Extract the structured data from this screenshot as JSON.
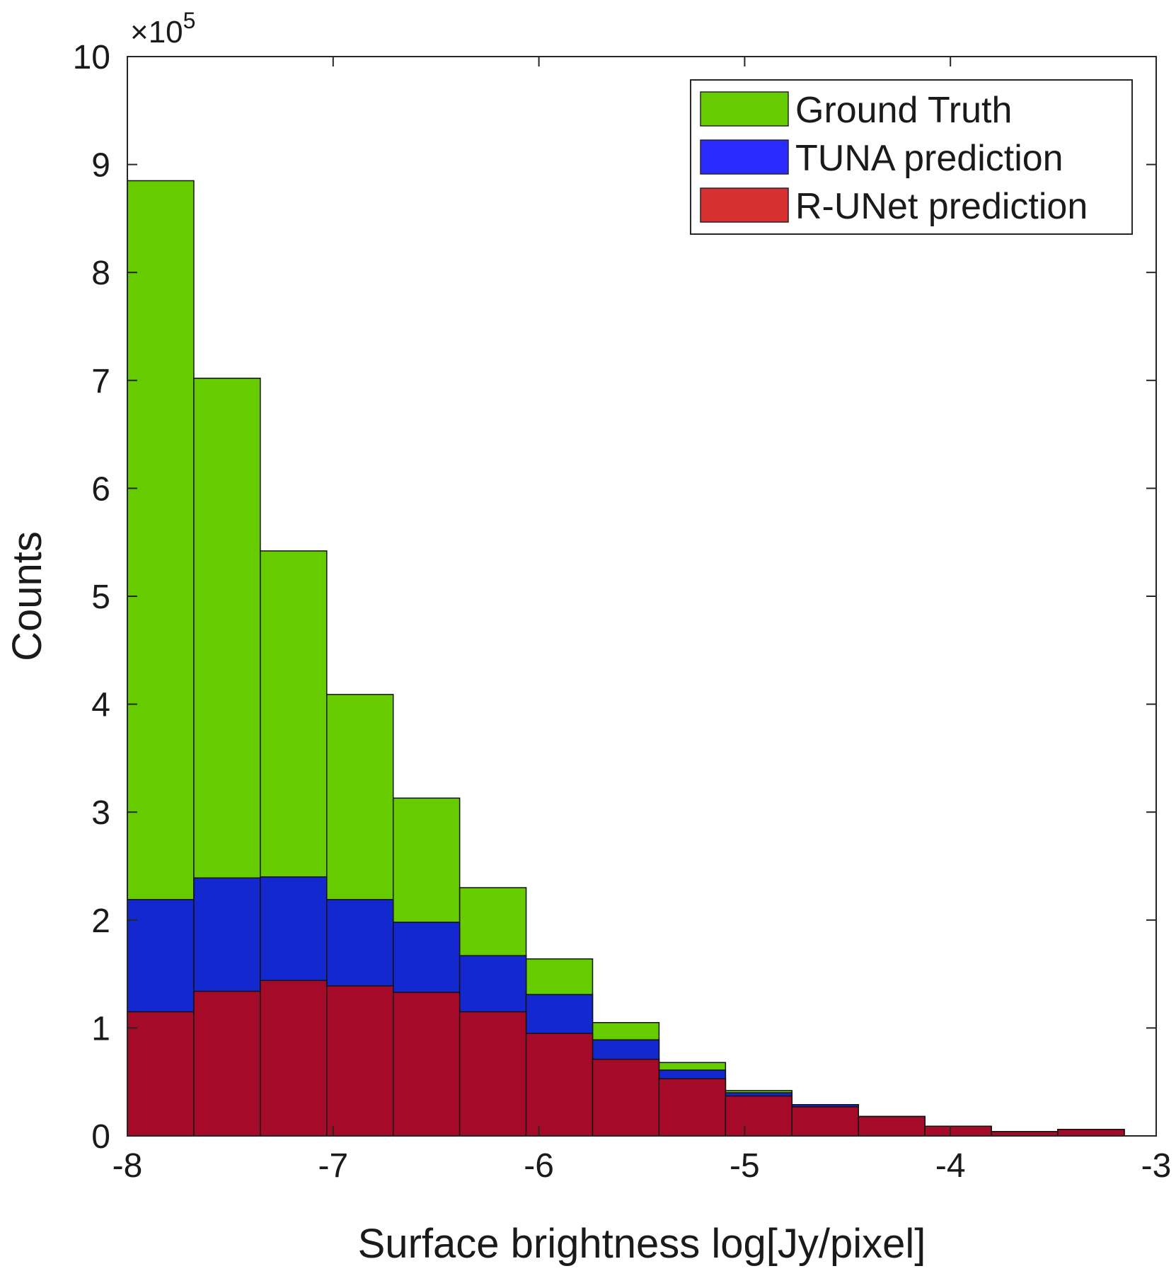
{
  "chart_data": {
    "type": "bar",
    "xlabel": "Surface brightness log[Jy/pixel]",
    "ylabel": "Counts",
    "yexponent_base": "×10",
    "yexponent_power": "5",
    "xlim": [
      -8,
      -3
    ],
    "ylim": [
      0,
      10
    ],
    "xticks": [
      "-8",
      "-7",
      "-6",
      "-5",
      "-4",
      "-3"
    ],
    "yticks": [
      "0",
      "1",
      "2",
      "3",
      "4",
      "5",
      "6",
      "7",
      "8",
      "9",
      "10"
    ],
    "bin_edges": [
      -8.0,
      -7.677,
      -7.354,
      -7.031,
      -6.708,
      -6.385,
      -6.062,
      -5.739,
      -5.416,
      -5.093,
      -4.77,
      -4.447,
      -4.124,
      -3.801,
      -3.478,
      -3.155
    ],
    "legend_position": "top-right",
    "series": [
      {
        "name": "Ground Truth",
        "color": "#66cc00",
        "values": [
          8.85,
          7.02,
          5.42,
          4.09,
          3.13,
          2.3,
          1.64,
          1.05,
          0.68,
          0.42,
          0.29,
          0.18,
          0.09,
          0.04,
          0.06
        ]
      },
      {
        "name": "TUNA prediction",
        "color": "#1428d0",
        "values": [
          2.19,
          2.39,
          2.4,
          2.19,
          1.98,
          1.67,
          1.31,
          0.89,
          0.61,
          0.4,
          0.29,
          0.18,
          0.09,
          0.04,
          0.06
        ]
      },
      {
        "name": "R-UNet prediction",
        "color": "#a50a28",
        "values": [
          1.15,
          1.34,
          1.44,
          1.39,
          1.33,
          1.15,
          0.95,
          0.71,
          0.53,
          0.37,
          0.27,
          0.18,
          0.09,
          0.04,
          0.06
        ]
      }
    ]
  }
}
